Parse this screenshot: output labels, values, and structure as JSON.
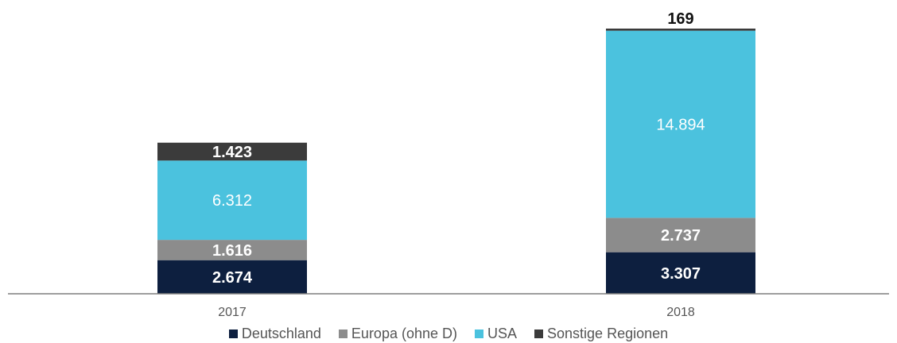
{
  "chart_data": {
    "type": "bar",
    "stacked": true,
    "categories": [
      "2017",
      "2018"
    ],
    "series": [
      {
        "name": "Deutschland",
        "color": "#0d1f3f",
        "label_color": "#ffffff",
        "values": [
          2674,
          3307
        ],
        "labels": [
          "2.674",
          "3.307"
        ]
      },
      {
        "name": "Europa (ohne D)",
        "color": "#8c8c8c",
        "label_color": "#ffffff",
        "values": [
          1616,
          2737
        ],
        "labels": [
          "1.616",
          "2.737"
        ]
      },
      {
        "name": "USA",
        "color": "#4bc2de",
        "label_color": "#ffffff",
        "values": [
          6312,
          14894
        ],
        "labels": [
          "6.312",
          "14.894"
        ]
      },
      {
        "name": "Sonstige Regionen",
        "color": "#3b3b3b",
        "label_color": "#ffffff",
        "values": [
          1423,
          169
        ],
        "labels": [
          "1.423",
          "169"
        ]
      }
    ],
    "ylim": [
      0,
      21107
    ],
    "grid": false,
    "legend_position": "bottom",
    "title": "",
    "xlabel": "",
    "ylabel": ""
  }
}
